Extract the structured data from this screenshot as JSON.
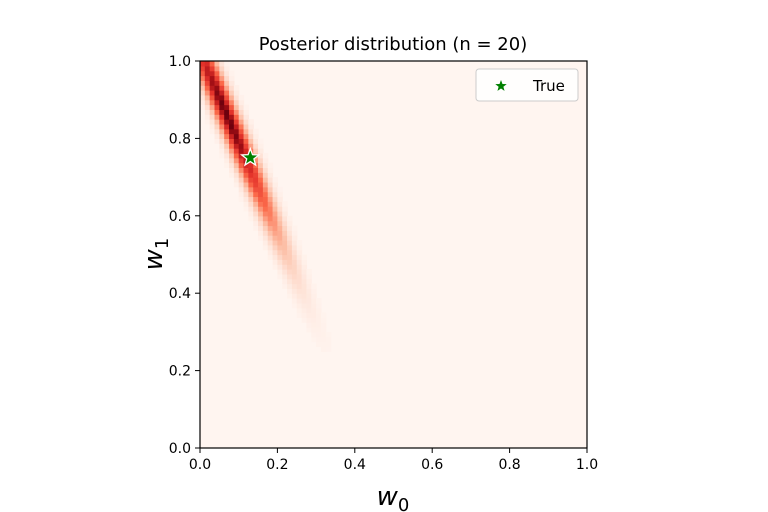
{
  "chart_data": {
    "type": "heatmap",
    "title": "Posterior distribution (n = 20)",
    "xlabel": {
      "base": "w",
      "sub": "0"
    },
    "ylabel": {
      "base": "w",
      "sub": "1"
    },
    "xlim": [
      0.0,
      1.0
    ],
    "ylim": [
      0.0,
      1.0
    ],
    "xticks": [
      "0.0",
      "0.2",
      "0.4",
      "0.6",
      "0.8",
      "1.0"
    ],
    "yticks": [
      "0.0",
      "0.2",
      "0.4",
      "0.6",
      "0.8",
      "1.0"
    ],
    "grid": false,
    "colormap": "Reds",
    "colors": {
      "low": "#fff5f0",
      "mid": "#e3312a",
      "high": "#67000d"
    },
    "posterior": {
      "mode": {
        "w0": 0.07,
        "w1": 0.86
      },
      "axis_direction": {
        "w0": 0.39,
        "w1": -0.92
      },
      "sd_major": 0.22,
      "sd_minor": 0.018
    },
    "points": [
      {
        "label": "True",
        "w0": 0.13,
        "w1": 0.75,
        "marker": "star",
        "color": "#008000"
      }
    ],
    "legend": {
      "position": "top-right",
      "entries": [
        {
          "label": "True",
          "marker": "star",
          "color": "#008000"
        }
      ]
    }
  }
}
